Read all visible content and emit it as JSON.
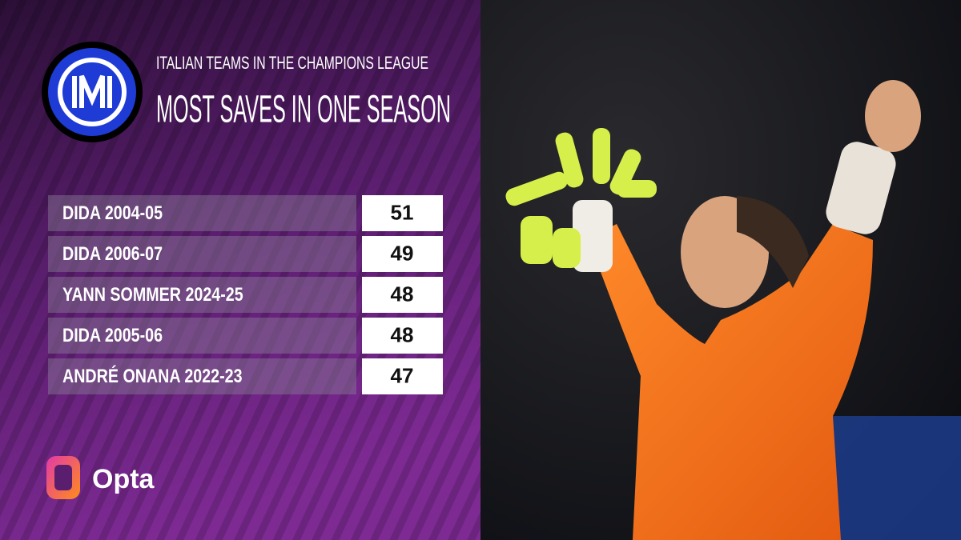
{
  "header": {
    "kicker": "ITALIAN TEAMS IN THE CHAMPIONS LEAGUE",
    "title": "MOST SAVES IN ONE SEASON"
  },
  "table": {
    "rows": [
      [
        "DIDA 2004-05",
        51
      ],
      [
        "DIDA 2006-07",
        49
      ],
      [
        "YANN SOMMER 2024-25",
        48
      ],
      [
        "DIDA 2005-06",
        48
      ],
      [
        "ANDRÉ ONANA 2022-23",
        47
      ]
    ]
  },
  "brand": "Opta"
}
